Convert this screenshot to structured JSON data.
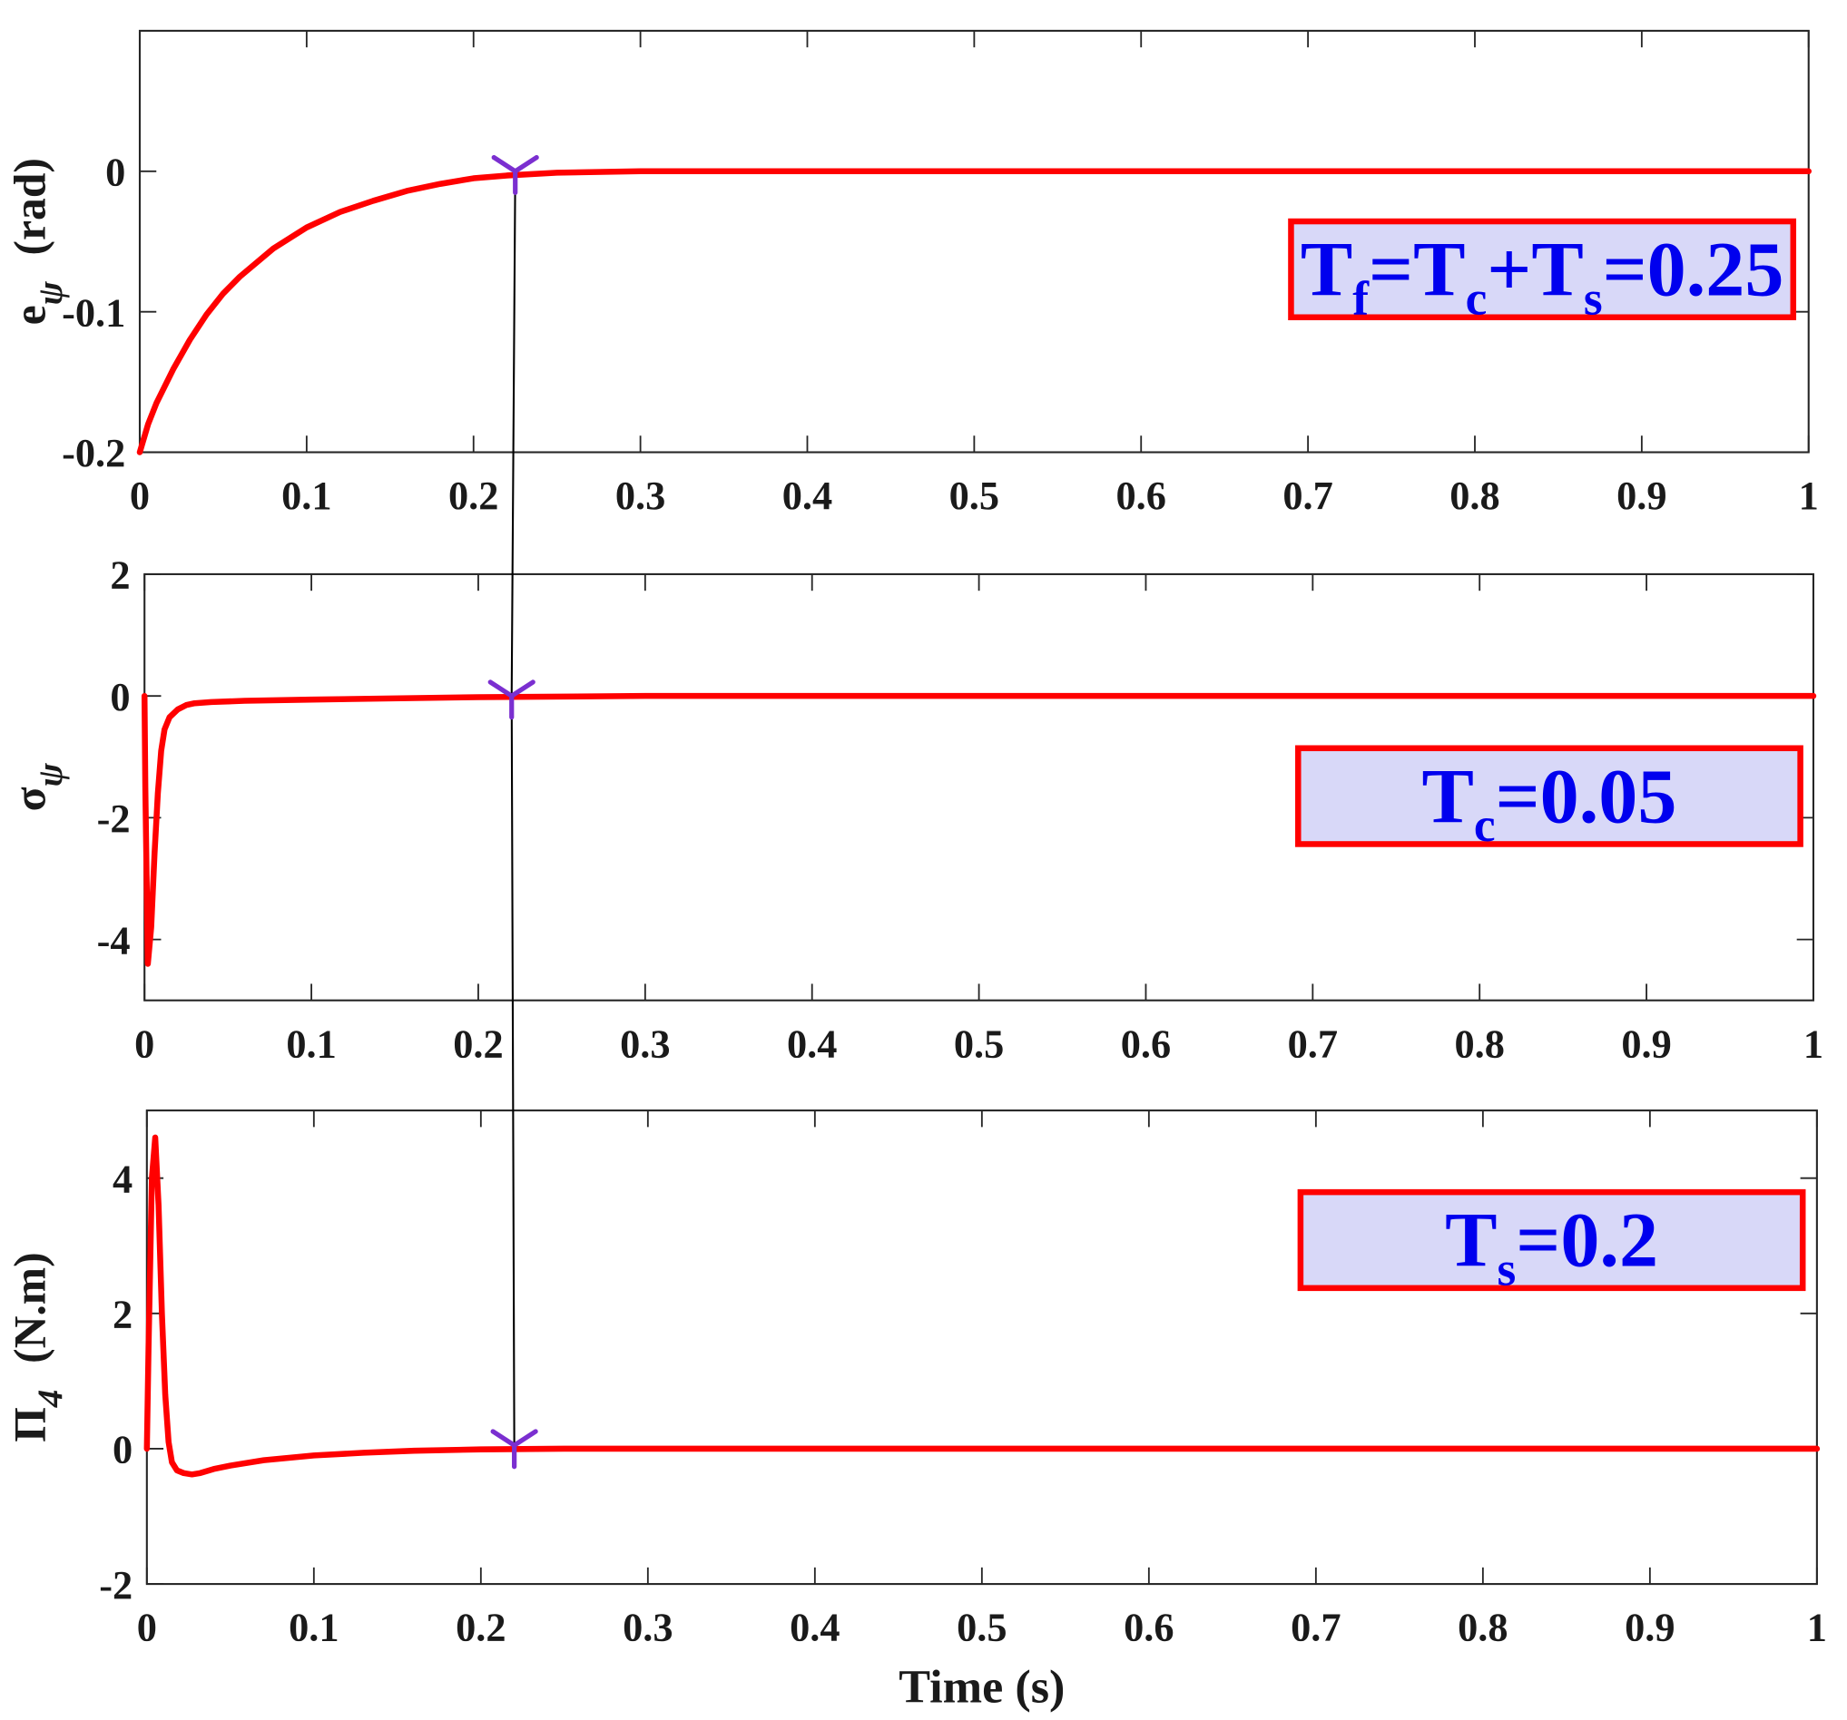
{
  "chart_data": [
    {
      "type": "line",
      "ylabel": "e",
      "ylabel_sub": "ψ",
      "ylabel_unit": "(rad)",
      "xlim": [
        0,
        1
      ],
      "ylim": [
        -0.2,
        0.1
      ],
      "xticks": [
        0,
        0.1,
        0.2,
        0.3,
        0.4,
        0.5,
        0.6,
        0.7,
        0.8,
        0.9,
        1
      ],
      "xtick_labels": [
        "0",
        "0.1",
        "0.2",
        "0.3",
        "0.4",
        "0.5",
        "0.6",
        "0.7",
        "0.8",
        "0.9",
        "1"
      ],
      "yticks": [
        -0.2,
        -0.1,
        0
      ],
      "ytick_labels": [
        "-0.2",
        "-0.1",
        "0"
      ],
      "grid": false,
      "line_color": "#ff0000",
      "x": [
        0,
        0.005,
        0.01,
        0.02,
        0.03,
        0.04,
        0.05,
        0.06,
        0.08,
        0.1,
        0.12,
        0.14,
        0.16,
        0.18,
        0.2,
        0.22,
        0.25,
        0.3,
        0.5,
        1.0
      ],
      "y": [
        -0.2,
        -0.18,
        -0.165,
        -0.141,
        -0.12,
        -0.102,
        -0.087,
        -0.075,
        -0.055,
        -0.04,
        -0.029,
        -0.021,
        -0.014,
        -0.009,
        -0.005,
        -0.003,
        -0.001,
        0,
        0,
        0
      ],
      "marker": {
        "x": 0.225,
        "y": 0,
        "color": "#7b2fd0"
      },
      "annotation": {
        "parts": [
          [
            "T",
            ""
          ],
          [
            "f",
            "sub"
          ],
          [
            "=T",
            ""
          ],
          [
            "c",
            "sub"
          ],
          [
            "+T",
            ""
          ],
          [
            "s",
            "sub"
          ],
          [
            "=0.25",
            ""
          ]
        ]
      }
    },
    {
      "type": "line",
      "ylabel": "σ",
      "ylabel_sub": "ψ",
      "ylabel_unit": "",
      "xlim": [
        0,
        1
      ],
      "ylim": [
        -5,
        2
      ],
      "xticks": [
        0,
        0.1,
        0.2,
        0.3,
        0.4,
        0.5,
        0.6,
        0.7,
        0.8,
        0.9,
        1
      ],
      "xtick_labels": [
        "0",
        "0.1",
        "0.2",
        "0.3",
        "0.4",
        "0.5",
        "0.6",
        "0.7",
        "0.8",
        "0.9",
        "1"
      ],
      "yticks": [
        -4,
        -2,
        0,
        2
      ],
      "ytick_labels": [
        "-4",
        "-2",
        "0",
        "2"
      ],
      "grid": false,
      "line_color": "#ff0000",
      "x": [
        0,
        0.0005,
        0.002,
        0.004,
        0.006,
        0.008,
        0.01,
        0.012,
        0.015,
        0.02,
        0.025,
        0.03,
        0.04,
        0.06,
        0.1,
        0.2,
        0.3,
        1.0
      ],
      "y": [
        0,
        -1.5,
        -4.4,
        -3.8,
        -2.6,
        -1.6,
        -0.9,
        -0.55,
        -0.35,
        -0.22,
        -0.15,
        -0.12,
        -0.1,
        -0.08,
        -0.06,
        -0.02,
        0,
        0
      ],
      "marker": {
        "x": 0.22,
        "y": 0,
        "color": "#7b2fd0"
      },
      "annotation": {
        "parts": [
          [
            "T",
            ""
          ],
          [
            "c",
            "sub"
          ],
          [
            "=0.05",
            ""
          ]
        ]
      }
    },
    {
      "type": "line",
      "ylabel": "Π",
      "ylabel_sub": "4",
      "ylabel_unit": "(N.m)",
      "xlabel": "Time (s)",
      "xlim": [
        0,
        1
      ],
      "ylim": [
        -2,
        5
      ],
      "xticks": [
        0,
        0.1,
        0.2,
        0.3,
        0.4,
        0.5,
        0.6,
        0.7,
        0.8,
        0.9,
        1
      ],
      "xtick_labels": [
        "0",
        "0.1",
        "0.2",
        "0.3",
        "0.4",
        "0.5",
        "0.6",
        "0.7",
        "0.8",
        "0.9",
        "1"
      ],
      "yticks": [
        -2,
        0,
        2,
        4
      ],
      "ytick_labels": [
        "-2",
        "0",
        "2",
        "4"
      ],
      "grid": false,
      "line_color": "#ff0000",
      "x": [
        0,
        0.001,
        0.003,
        0.005,
        0.007,
        0.009,
        0.011,
        0.013,
        0.015,
        0.018,
        0.022,
        0.027,
        0.032,
        0.04,
        0.05,
        0.07,
        0.1,
        0.13,
        0.16,
        0.2,
        0.25,
        1.0
      ],
      "y": [
        0,
        1.5,
        4.0,
        4.6,
        3.6,
        2.0,
        0.8,
        0.1,
        -0.2,
        -0.32,
        -0.36,
        -0.38,
        -0.36,
        -0.3,
        -0.25,
        -0.17,
        -0.1,
        -0.06,
        -0.03,
        -0.01,
        0,
        0
      ],
      "marker": {
        "x": 0.22,
        "y": 0.05,
        "color": "#7b2fd0"
      },
      "annotation": {
        "parts": [
          [
            "T",
            ""
          ],
          [
            "s",
            "sub"
          ],
          [
            "=0.2",
            ""
          ]
        ]
      }
    }
  ],
  "style": {
    "annotation_fill": "#d8d8f8",
    "annotation_border": "#ff0000",
    "annotation_text": "#0000ee",
    "connector_color": "#000000"
  }
}
